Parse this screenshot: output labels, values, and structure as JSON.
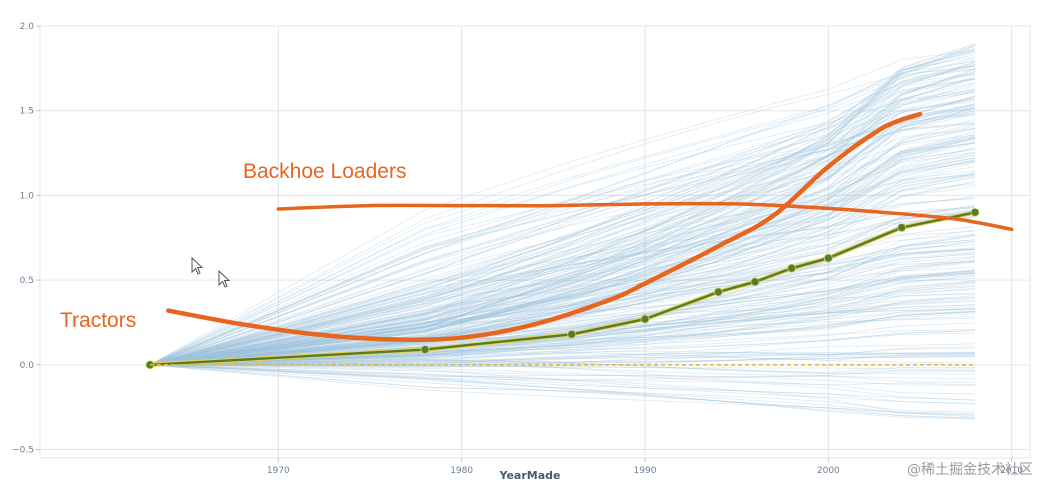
{
  "chart_data": {
    "type": "line",
    "title": "",
    "xlabel": "YearMade",
    "ylabel": "",
    "xlim": [
      1957,
      2011
    ],
    "ylim": [
      -0.55,
      2.0
    ],
    "x_ticks": [
      1970,
      1980,
      1990,
      2000,
      2010
    ],
    "x_tick_labels": [
      "1970",
      "1980",
      "1990",
      "2000",
      "2010"
    ],
    "y_ticks": [
      2.0,
      1.5,
      1.0,
      0.5,
      0.0,
      -0.5
    ],
    "y_tick_labels": [
      "2.0",
      "1.5",
      "1.0",
      "0.5",
      "0.0",
      "−0.5"
    ],
    "grid": true,
    "ice_lines": {
      "description_visible": "many thin light-blue individual conditional expectation lines",
      "x": [
        1963,
        1978,
        1986,
        1990,
        1994,
        1996,
        1998,
        2000,
        2004,
        2008
      ],
      "color": "#9ec3dd"
    },
    "series": [
      {
        "name": "",
        "style": "average",
        "color": "#5a7a2a",
        "x": [
          1963,
          1978,
          1986,
          1990,
          1994,
          1996,
          1998,
          2000,
          2004,
          2008
        ],
        "y": [
          0.0,
          0.09,
          0.18,
          0.27,
          0.43,
          0.49,
          0.57,
          0.63,
          0.81,
          0.9
        ]
      },
      {
        "name": "",
        "style": "baseline",
        "color": "#e0b84a",
        "x": [
          1963,
          2008
        ],
        "y": [
          0.0,
          0.0
        ]
      }
    ],
    "annotations": [
      {
        "text": "Backhoe Loaders",
        "color": "#e8651e",
        "x": [
          1970,
          1975,
          1980,
          1985,
          1990,
          1995,
          1999,
          2003,
          2007,
          2010
        ],
        "y": [
          0.92,
          0.94,
          0.94,
          0.94,
          0.95,
          0.95,
          0.93,
          0.9,
          0.86,
          0.8
        ]
      },
      {
        "text": "Tractors",
        "color": "#e8651e",
        "x": [
          1964,
          1968,
          1972,
          1976,
          1980,
          1984,
          1988,
          1990,
          1994,
          1997,
          2000,
          2003,
          2005
        ],
        "y": [
          0.32,
          0.24,
          0.18,
          0.15,
          0.16,
          0.24,
          0.38,
          0.48,
          0.7,
          0.88,
          1.17,
          1.4,
          1.48
        ]
      }
    ]
  },
  "watermark": "@稀土掘金技术社区"
}
